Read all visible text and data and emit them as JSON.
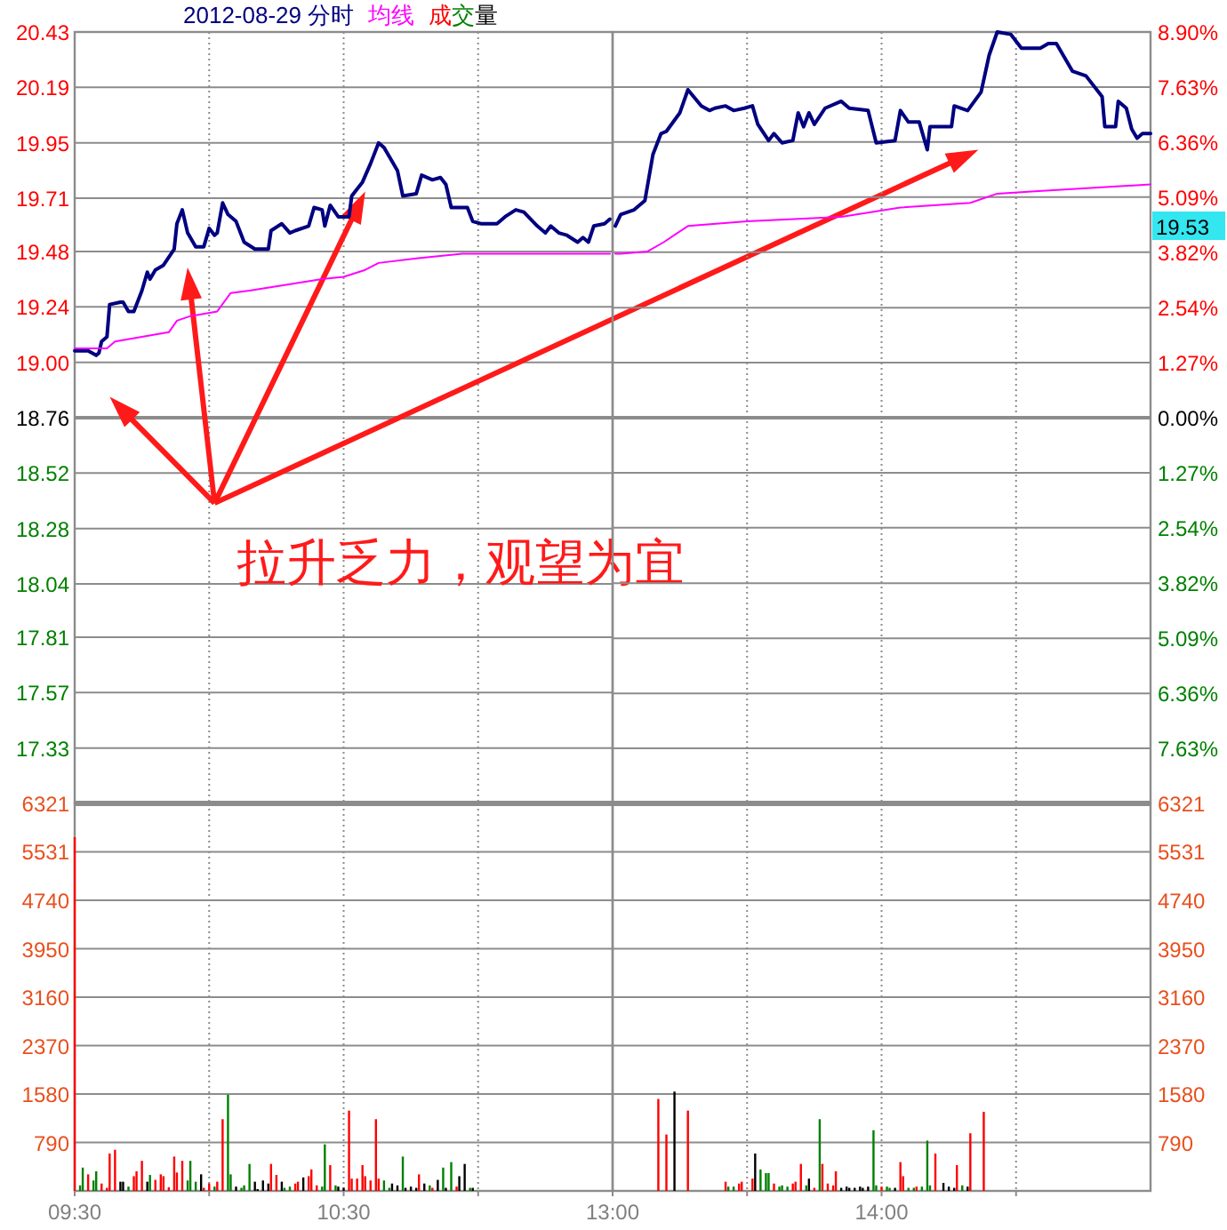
{
  "chart_data": [
    {
      "type": "line",
      "title": "2012-08-29 分时",
      "legend": "top",
      "grid": true,
      "tick_labels": "y",
      "xlim": [
        9.5,
        11.5
      ],
      "xticks": [
        9.5,
        10,
        10.5,
        11
      ],
      "ylim": [
        17.09,
        20.43
      ],
      "yticks": [
        20.43,
        20.19,
        19.95,
        19.71,
        19.48,
        19.24,
        {
          "value": 19,
          "label": "19.00"
        },
        18.76,
        18.52,
        18.28,
        18.04,
        17.81,
        17.57,
        17.33
      ],
      "ref_lines": [
        {
          "axis": "y",
          "value": 18.76
        }
      ],
      "annotations": [
        "拉升乏力，观望为宜",
        "成交量"
      ],
      "series": [
        {
          "color": "#000080",
          "x": [
            9.5,
            9.55,
            9.58,
            9.59,
            9.6,
            9.62,
            9.63,
            9.67,
            9.68,
            9.7,
            9.72,
            9.75,
            9.77,
            9.78,
            9.8,
            9.83,
            9.87,
            9.88,
            9.9,
            9.92,
            9.95,
            9.98,
            10,
            10.02,
            10.03,
            10.05,
            10.07,
            10.1,
            10.13,
            10.17,
            10.22,
            10.23,
            10.27,
            10.3,
            10.32,
            10.37,
            10.39,
            10.42,
            10.43,
            10.45,
            10.48,
            10.52,
            10.53,
            10.55,
            10.57,
            10.6,
            10.63,
            10.65,
            10.68,
            10.7,
            10.72,
            10.77,
            10.79,
            10.83,
            10.86,
            10.88,
            10.9,
            10.96,
            10.98,
            11.01,
            11.07,
            11.1,
            11.14,
            11.17,
            11.22,
            11.25,
            11.27,
            11.3,
            11.33,
            11.37,
            11.39,
            11.41,
            11.43,
            11.47,
            11.49
          ],
          "values": [
            19.05,
            19.05,
            19.03,
            19.04,
            19.09,
            19.11,
            19.25,
            19.26,
            19.26,
            19.22,
            19.22,
            19.31,
            19.39,
            19.36,
            19.4,
            19.42,
            19.49,
            19.6,
            19.66,
            19.56,
            19.5,
            19.5,
            19.58,
            19.55,
            19.56,
            19.69,
            19.64,
            19.61,
            19.52,
            19.49,
            19.49,
            19.57,
            19.6,
            19.56,
            19.57,
            19.59,
            19.67,
            19.66,
            19.59,
            19.68,
            19.63,
            19.63,
            19.72,
            19.75,
            19.78,
            19.86,
            19.95,
            19.93,
            19.87,
            19.83,
            19.72,
            19.73,
            19.81,
            19.79,
            19.8,
            19.77,
            19.67,
            19.67,
            19.61,
            19.6,
            19.6,
            19.63,
            19.66,
            19.65,
            19.59,
            19.56,
            19.59,
            19.56,
            19.55,
            19.52,
            19.54,
            19.52,
            19.59,
            19.6,
            19.62
          ]
        },
        {
          "name": "均线",
          "color": "#ff00ff",
          "x": [
            9.5,
            9.62,
            9.65,
            9.75,
            9.85,
            9.88,
            9.93,
            10.03,
            10.08,
            10.15,
            10.42,
            10.5,
            10.58,
            10.63,
            10.77,
            10.94,
            11.2,
            11.49
          ],
          "values": [
            19.06,
            19.06,
            19.09,
            19.11,
            19.13,
            19.18,
            19.2,
            19.22,
            19.3,
            19.31,
            19.36,
            19.37,
            19.4,
            19.43,
            19.45,
            19.47,
            19.47,
            19.47
          ]
        }
      ]
    },
    {
      "type": "line",
      "grid": true,
      "tick_labels": "y",
      "xlim": [
        13,
        15
      ],
      "xticks": [
        13,
        13.5,
        14,
        14.5
      ],
      "ylim": [
        17.09,
        20.43
      ],
      "y2lim": [
        -8.9,
        8.9
      ],
      "y2ticks": [
        {
          "value": 8.9,
          "label": "8.90%"
        },
        {
          "value": 7.63,
          "label": "7.63%"
        },
        {
          "value": 6.36,
          "label": "6.36%"
        },
        {
          "value": 5.09,
          "label": "5.09%"
        },
        {
          "value": 3.82,
          "label": "3.82%"
        },
        {
          "value": 2.54,
          "label": "2.54%"
        },
        {
          "value": 1.27,
          "label": "1.27%"
        },
        {
          "value": 0,
          "label": "0.00%"
        },
        {
          "value": -1.27,
          "label": "1.27%"
        },
        {
          "value": -2.54,
          "label": "2.54%"
        },
        {
          "value": -3.82,
          "label": "3.82%"
        },
        {
          "value": -5.09,
          "label": "5.09%"
        },
        {
          "value": -6.36,
          "label": "6.36%"
        },
        {
          "value": -7.63,
          "label": "7.63%"
        }
      ],
      "ref_lines": [
        {
          "axis": "y",
          "value": 18.76
        }
      ],
      "annotations": [
        "19.53"
      ],
      "series": [
        {
          "color": "#000080",
          "x": [
            13.01,
            13.03,
            13.08,
            13.12,
            13.15,
            13.18,
            13.2,
            13.25,
            13.28,
            13.33,
            13.36,
            13.38,
            13.42,
            13.45,
            13.49,
            13.52,
            13.54,
            13.58,
            13.6,
            13.63,
            13.67,
            13.69,
            13.71,
            13.73,
            13.75,
            13.79,
            13.85,
            13.88,
            13.95,
            13.98,
            14.05,
            14.07,
            14.1,
            14.14,
            14.17,
            14.18,
            14.26,
            14.27,
            14.32,
            14.37,
            14.4,
            14.43,
            14.48,
            14.52,
            14.59,
            14.62,
            14.65,
            14.71,
            14.76,
            14.82,
            14.83,
            14.87,
            14.88,
            14.91,
            14.93,
            14.95,
            14.97,
            15
          ],
          "values": [
            19.59,
            19.64,
            19.66,
            19.7,
            19.9,
            19.99,
            20.0,
            20.08,
            20.18,
            20.11,
            20.09,
            20.1,
            20.11,
            20.09,
            20.1,
            20.11,
            20.03,
            19.96,
            19.99,
            19.95,
            19.96,
            20.08,
            20.02,
            20.08,
            20.03,
            20.1,
            20.13,
            20.1,
            20.09,
            19.95,
            19.96,
            20.09,
            20.04,
            20.04,
            19.92,
            20.02,
            20.02,
            20.11,
            20.09,
            20.17,
            20.33,
            20.43,
            20.42,
            20.36,
            20.36,
            20.38,
            20.38,
            20.26,
            20.24,
            20.15,
            20.02,
            20.02,
            20.13,
            20.1,
            20.01,
            19.97,
            19.99,
            19.99
          ]
        },
        {
          "color": "#ff00ff",
          "x": [
            13.01,
            13.03,
            13.13,
            13.19,
            13.28,
            13.5,
            13.85,
            14.07,
            14.33,
            14.43,
            14.57,
            15
          ],
          "values": [
            19.47,
            19.47,
            19.48,
            19.52,
            19.59,
            19.61,
            19.63,
            19.67,
            19.69,
            19.73,
            19.74,
            19.77
          ]
        }
      ]
    },
    {
      "type": "bar",
      "grid": true,
      "xlim": [
        9.5,
        11.5
      ],
      "xticks": [
        {
          "value": 9.5,
          "label": "09:30"
        },
        {
          "value": 10,
          "label": null
        },
        {
          "value": 10.5,
          "label": "10:30"
        },
        {
          "value": 11,
          "label": null
        }
      ],
      "ylim": [
        0,
        6321
      ],
      "yticks": [
        790,
        1580,
        2370,
        3160,
        3950,
        4740,
        5531,
        6321
      ],
      "series": [
        {
          "color": "#ff0000",
          "x": [
            9.5,
            9.55,
            9.6,
            9.62,
            9.63,
            9.65,
            9.72,
            9.73,
            9.75,
            9.8,
            9.82,
            9.83,
            9.85,
            9.87,
            9.88,
            9.9,
            9.98,
            10,
            10.03,
            10.05,
            10.23,
            10.25,
            10.32,
            10.33,
            10.37,
            10.38,
            10.4,
            10.45,
            10.52,
            10.53,
            10.55,
            10.57,
            10.58,
            10.6,
            10.62,
            10.63,
            10.78,
            10.83,
            10.92
          ],
          "values": [
            5770,
            270,
            120,
            50,
            610,
            670,
            240,
            320,
            490,
            180,
            270,
            240,
            60,
            560,
            300,
            490,
            50,
            120,
            150,
            1170,
            440,
            260,
            120,
            150,
            240,
            350,
            90,
            420,
            1310,
            200,
            200,
            420,
            240,
            170,
            1170,
            200,
            270,
            50,
            70
          ]
        },
        {
          "color": "#008000",
          "x": [
            9.52,
            9.53,
            9.57,
            9.58,
            9.7,
            9.78,
            9.92,
            9.93,
            9.95,
            10.02,
            10.07,
            10.08,
            10.12,
            10.13,
            10.15,
            10.28,
            10.3,
            10.42,
            10.43,
            10.47,
            10.65,
            10.67,
            10.72,
            10.82,
            10.87,
            10.9,
            10.97
          ],
          "values": [
            90,
            380,
            170,
            320,
            70,
            260,
            170,
            490,
            150,
            70,
            1570,
            270,
            50,
            90,
            440,
            50,
            70,
            70,
            760,
            90,
            170,
            50,
            560,
            90,
            380,
            470,
            50
          ]
        },
        {
          "color": "#000000",
          "x": [
            9.67,
            9.68,
            9.77,
            9.97,
            10.1,
            10.17,
            10.18,
            10.2,
            10.22,
            10.27,
            10.35,
            10.48,
            10.5,
            10.68,
            10.7,
            10.73,
            10.75,
            10.77,
            10.8,
            10.85,
            10.88,
            10.93,
            10.95,
            10.98
          ],
          "values": [
            150,
            150,
            150,
            270,
            70,
            150,
            30,
            170,
            120,
            150,
            220,
            70,
            50,
            120,
            90,
            50,
            70,
            50,
            120,
            180,
            50,
            240,
            440,
            50
          ]
        }
      ]
    },
    {
      "type": "bar",
      "grid": true,
      "xlim": [
        13,
        15
      ],
      "xticks": [
        {
          "value": 13,
          "label": "13:00"
        },
        {
          "value": 13.5,
          "label": null
        },
        {
          "value": 14,
          "label": "14:00"
        },
        {
          "value": 14.5,
          "label": null
        }
      ],
      "y2lim": [
        0,
        6321
      ],
      "y2ticks": [
        790,
        1580,
        2370,
        3160,
        3950,
        4740,
        5531,
        6321
      ],
      "series": [
        {
          "axis": "y2",
          "color": "#ff0000",
          "x": [
            13.17,
            13.2,
            13.28,
            13.42,
            13.47,
            13.48,
            13.52,
            13.6,
            13.67,
            13.68,
            13.7,
            13.75,
            13.78,
            13.8,
            13.82,
            13.83,
            14,
            14.07,
            14.08,
            14.13,
            14.2,
            14.28,
            14.33,
            14.38
          ],
          "values": [
            1500,
            920,
            1310,
            150,
            120,
            150,
            200,
            120,
            120,
            150,
            440,
            50,
            440,
            120,
            90,
            320,
            70,
            470,
            240,
            70,
            610,
            420,
            940,
            1290
          ]
        },
        {
          "axis": "y2",
          "color": "#008000",
          "x": [
            13.43,
            13.45,
            13.55,
            13.57,
            13.58,
            13.62,
            13.63,
            13.65,
            13.72,
            13.77,
            13.97,
            13.98,
            14.02,
            14.03,
            14.1,
            14.12,
            14.15,
            14.17,
            14.18,
            14.3
          ],
          "values": [
            70,
            70,
            350,
            290,
            290,
            70,
            90,
            70,
            90,
            1170,
            990,
            90,
            70,
            50,
            50,
            50,
            70,
            820,
            90,
            90
          ]
        },
        {
          "axis": "y2",
          "color": "#000000",
          "x": [
            13.23,
            13.53,
            13.73,
            13.85,
            13.87,
            13.88,
            13.9,
            13.92,
            13.93,
            13.95,
            14.05,
            14.23,
            14.25,
            14.27,
            14.32
          ],
          "values": [
            1620,
            610,
            200,
            50,
            70,
            50,
            50,
            70,
            50,
            70,
            50,
            130,
            70,
            50,
            70
          ]
        }
      ]
    }
  ]
}
